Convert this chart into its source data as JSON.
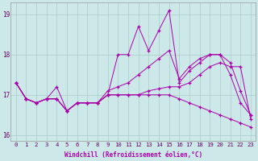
{
  "xlabel": "Windchill (Refroidissement éolien,°C)",
  "xlim": [
    -0.5,
    23.5
  ],
  "ylim": [
    15.85,
    19.3
  ],
  "yticks": [
    16,
    17,
    18,
    19
  ],
  "xticks": [
    0,
    1,
    2,
    3,
    4,
    5,
    6,
    7,
    8,
    9,
    10,
    11,
    12,
    13,
    14,
    15,
    16,
    17,
    18,
    19,
    20,
    21,
    22,
    23
  ],
  "bg_color": "#cce8e8",
  "line_color": "#aa00aa",
  "grid_color": "#aacccc",
  "series": [
    [
      17.3,
      16.9,
      16.8,
      16.9,
      17.2,
      16.6,
      16.8,
      16.8,
      16.8,
      17.0,
      18.0,
      18.0,
      18.7,
      18.1,
      18.6,
      19.1,
      17.3,
      17.6,
      17.8,
      18.0,
      18.0,
      17.5,
      16.8,
      16.5
    ],
    [
      17.3,
      16.9,
      16.8,
      16.9,
      16.9,
      16.6,
      16.8,
      16.8,
      16.8,
      17.1,
      17.2,
      17.3,
      17.5,
      17.7,
      17.9,
      18.1,
      17.4,
      17.7,
      17.9,
      18.0,
      18.0,
      17.8,
      17.1,
      16.5
    ],
    [
      17.3,
      16.9,
      16.8,
      16.9,
      16.9,
      16.6,
      16.8,
      16.8,
      16.8,
      17.0,
      17.0,
      17.0,
      17.0,
      17.1,
      17.15,
      17.2,
      17.2,
      17.3,
      17.5,
      17.7,
      17.8,
      17.7,
      17.7,
      16.4
    ],
    [
      17.3,
      16.9,
      16.8,
      16.9,
      16.9,
      16.6,
      16.8,
      16.8,
      16.8,
      17.0,
      17.0,
      17.0,
      17.0,
      17.0,
      17.0,
      17.0,
      16.9,
      16.8,
      16.7,
      16.6,
      16.5,
      16.4,
      16.3,
      16.2
    ]
  ]
}
